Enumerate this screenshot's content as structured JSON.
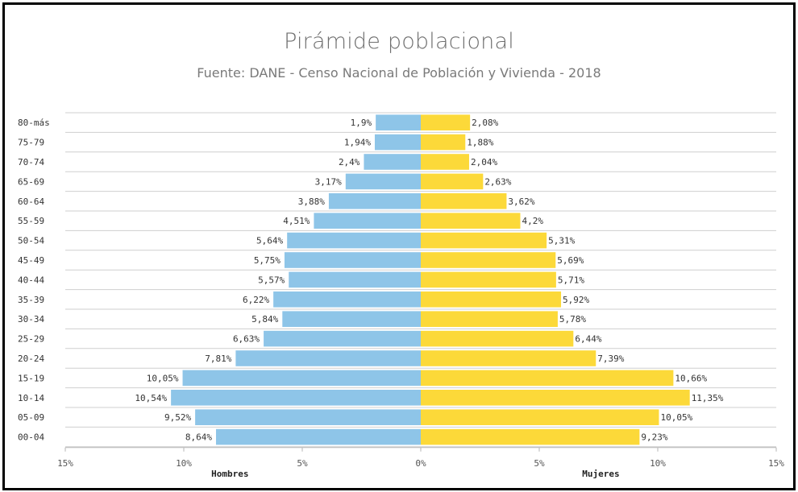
{
  "chart_data": {
    "type": "bar",
    "title": "Pirámide poblacional",
    "subtitle": "Fuente: DANE - Censo Nacional de Población y Vivienda - 2018",
    "categories": [
      "80-más",
      "75-79",
      "70-74",
      "65-69",
      "60-64",
      "55-59",
      "50-54",
      "45-49",
      "40-44",
      "35-39",
      "30-34",
      "25-29",
      "20-24",
      "15-19",
      "10-14",
      "05-09",
      "00-04"
    ],
    "series": [
      {
        "name": "Hombres",
        "color": "#8ec5e8",
        "values": [
          1.9,
          1.94,
          2.4,
          3.17,
          3.88,
          4.51,
          5.64,
          5.75,
          5.57,
          6.22,
          5.84,
          6.63,
          7.81,
          10.05,
          10.54,
          9.52,
          8.64
        ],
        "labels": [
          "1,9%",
          "1,94%",
          "2,4%",
          "3,17%",
          "3,88%",
          "4,51%",
          "5,64%",
          "5,75%",
          "5,57%",
          "6,22%",
          "5,84%",
          "6,63%",
          "7,81%",
          "10,05%",
          "10,54%",
          "9,52%",
          "8,64%"
        ]
      },
      {
        "name": "Mujeres",
        "color": "#fcd939",
        "values": [
          2.08,
          1.88,
          2.04,
          2.63,
          3.62,
          4.2,
          5.31,
          5.69,
          5.71,
          5.92,
          5.78,
          6.44,
          7.39,
          10.66,
          11.35,
          10.05,
          9.23
        ],
        "labels": [
          "2,08%",
          "1,88%",
          "2,04%",
          "2,63%",
          "3,62%",
          "4,2%",
          "5,31%",
          "5,69%",
          "5,71%",
          "5,92%",
          "5,78%",
          "6,44%",
          "7,39%",
          "10,66%",
          "11,35%",
          "10,05%",
          "9,23%"
        ]
      }
    ],
    "xlim": [
      -15,
      15
    ],
    "xticks": [
      -15,
      -10,
      -5,
      0,
      5,
      10,
      15
    ],
    "xtick_labels": [
      "15%",
      "10%",
      "5%",
      "0%",
      "5%",
      "10%",
      "15%"
    ],
    "grid": true
  }
}
